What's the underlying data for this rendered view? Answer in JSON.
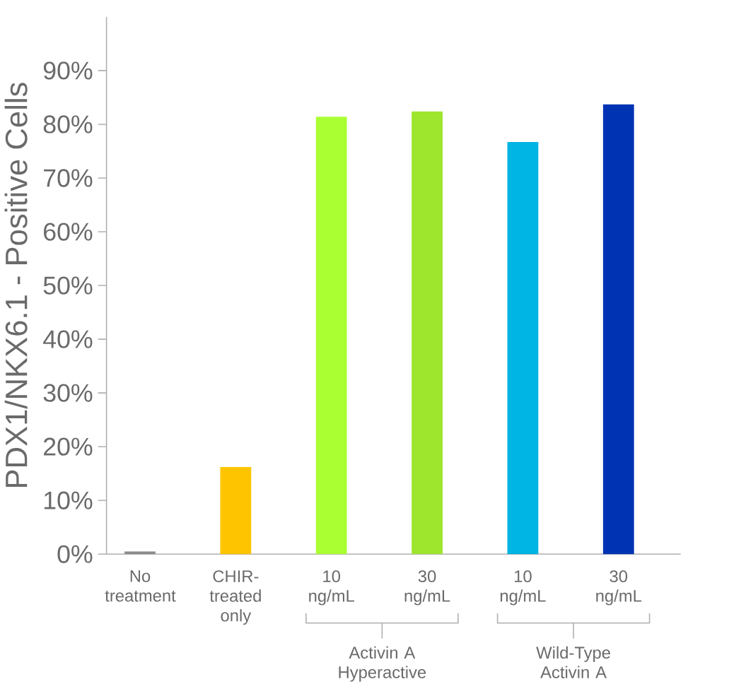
{
  "chart_data": {
    "type": "bar",
    "ylabel": "PDX1/NKX6.1 - Positive Cells",
    "categories": [
      "No treatment",
      "CHIR-treated only",
      "10 ng/mL",
      "30 ng/mL",
      "10 ng/mL",
      "30 ng/mL"
    ],
    "values": [
      0.5,
      16.2,
      81.4,
      82.4,
      76.7,
      83.7
    ],
    "colors": [
      "#8c8c8c",
      "#ffc400",
      "#aaff33",
      "#9ee52e",
      "#00b4e3",
      "#0033b4"
    ],
    "ylim": [
      0,
      100
    ],
    "yticks": [
      {
        "value": 0,
        "label": "0%"
      },
      {
        "value": 10,
        "label": "10%"
      },
      {
        "value": 20,
        "label": "20%"
      },
      {
        "value": 30,
        "label": "30%"
      },
      {
        "value": 40,
        "label": "40%"
      },
      {
        "value": 50,
        "label": "50%"
      },
      {
        "value": 60,
        "label": "60%"
      },
      {
        "value": 70,
        "label": "70%"
      },
      {
        "value": 80,
        "label": "80%"
      },
      {
        "value": 90,
        "label": "90%"
      }
    ],
    "annotations": [
      "Activin A Hyperactive",
      "Wild-Type Activin A"
    ]
  }
}
